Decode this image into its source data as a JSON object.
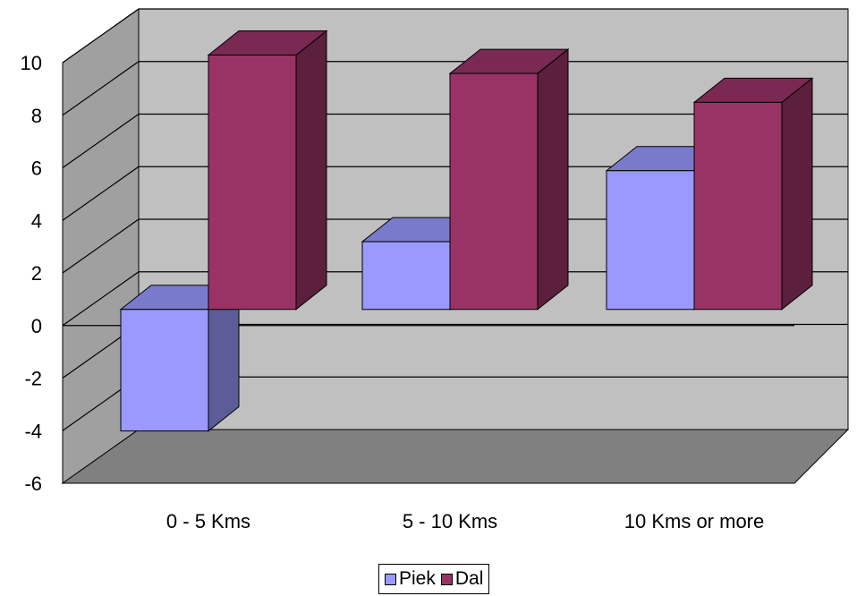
{
  "chart_data": {
    "type": "bar",
    "categories": [
      "0 - 5 Kms",
      "5 - 10 Kms",
      "10 Kms or more"
    ],
    "series": [
      {
        "name": "Piek",
        "values": [
          -5.1,
          2.1,
          4.8
        ],
        "color": "#9999FF"
      },
      {
        "name": "Dal",
        "values": [
          9.2,
          8.5,
          7.4
        ],
        "color": "#993366"
      }
    ],
    "ylim": [
      -6,
      10
    ],
    "yticks": [
      "10",
      "8",
      "6",
      "4",
      "2",
      "0",
      "-2",
      "-4",
      "-6"
    ],
    "grid": true,
    "three_d": true,
    "legend_position": "bottom",
    "colors": {
      "back_wall": "#C0C0C0",
      "side_wall": "#A0A0A0",
      "floor": "#808080"
    }
  }
}
